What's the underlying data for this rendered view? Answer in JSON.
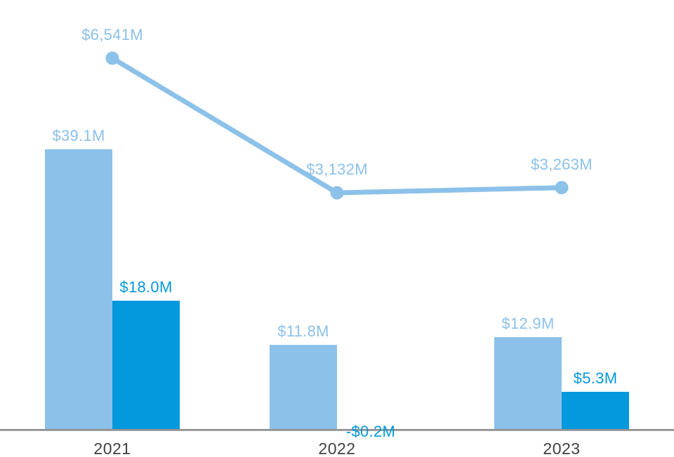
{
  "chart_data": {
    "type": "combo",
    "title": "",
    "xlabel": "",
    "ylabel": "",
    "units": "$M",
    "legend": "none",
    "gridlines": false,
    "categories": [
      "2021",
      "2022",
      "2023"
    ],
    "series": [
      {
        "name": "bar-series-light",
        "type": "bar",
        "values": [
          39.1,
          11.8,
          12.9
        ],
        "labels": [
          "$39.1M",
          "$11.8M",
          "$12.9M"
        ],
        "color": "#8CC1E9"
      },
      {
        "name": "bar-series-dark",
        "type": "bar",
        "values": [
          18.0,
          -0.2,
          5.3
        ],
        "labels": [
          "$18.0M",
          "-$0.2M",
          "$5.3M"
        ],
        "color": "#0499DC"
      },
      {
        "name": "line-series",
        "type": "line",
        "values": [
          6541,
          3132,
          3263
        ],
        "labels": [
          "$6,541M",
          "$3,132M",
          "$3,263M"
        ],
        "color": "#8CC1E9"
      }
    ],
    "colors": {
      "axis_line": "#9D9D9D",
      "axis_label": "#414042"
    }
  }
}
